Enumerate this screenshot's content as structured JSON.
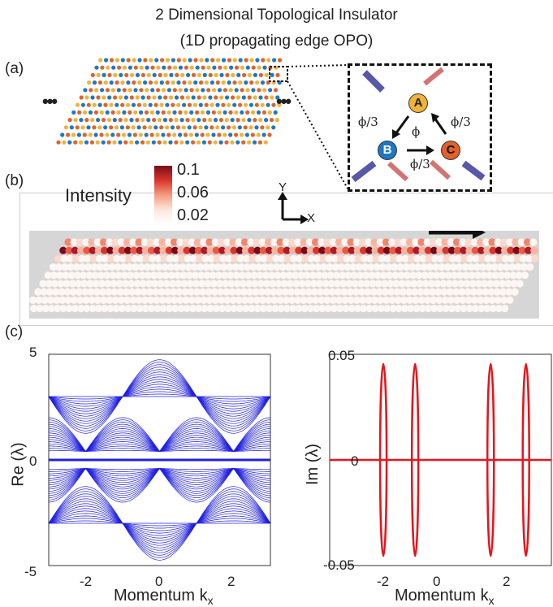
{
  "figure": {
    "title_line1": "2 Dimensional Topological Insulator",
    "title_line2": "(1D propagating edge OPO)",
    "panel_a_label": "(a)",
    "panel_b_label": "(b)",
    "panel_c_label": "(c)",
    "ellipsis_left": "•••",
    "ellipsis_right": "•••"
  },
  "inset": {
    "node_a": "A",
    "node_b": "B",
    "node_c": "C",
    "phi_center": "ϕ",
    "phi_third_left": "ϕ/3",
    "phi_third_right": "ϕ/3",
    "phi_third_bottom": "ϕ/3"
  },
  "colorbar": {
    "label": "Intensity",
    "ticks": [
      "0.1",
      "0.06",
      "0.02"
    ]
  },
  "axes_indicator": {
    "y_label": "Y",
    "x_label": "X"
  },
  "colors": {
    "node_a": "#f0b33a",
    "node_b": "#1f77c4",
    "node_c": "#e0622a",
    "band_blue": "#2020e0",
    "imag_red": "#e8141b",
    "lattice_bg": "#d6d6d6"
  },
  "chart_data": [
    {
      "type": "line",
      "xlabel": "Momentum k",
      "xlabel_sub": "x",
      "ylabel": "Re (λ)",
      "xlim": [
        -3.14,
        3.14
      ],
      "ylim": [
        -5,
        5
      ],
      "xticks": [
        "-2",
        "0",
        "2"
      ],
      "yticks": [
        "5",
        "0",
        "-5"
      ]
    },
    {
      "type": "line",
      "xlabel": "Momentum k",
      "xlabel_sub": "x",
      "ylabel": "Im (λ)",
      "xlim": [
        -3.14,
        3.14
      ],
      "ylim": [
        -0.055,
        0.055
      ],
      "xticks": [
        "-2",
        "0",
        "2"
      ],
      "yticks": [
        "0.05",
        "0",
        "-0.05"
      ],
      "loops": [
        {
          "x": -1.62,
          "amplitude": 0.05
        },
        {
          "x": -0.72,
          "amplitude": 0.05
        },
        {
          "x": 1.42,
          "amplitude": 0.05
        },
        {
          "x": 2.42,
          "amplitude": 0.05
        }
      ],
      "baseline": 0
    }
  ]
}
